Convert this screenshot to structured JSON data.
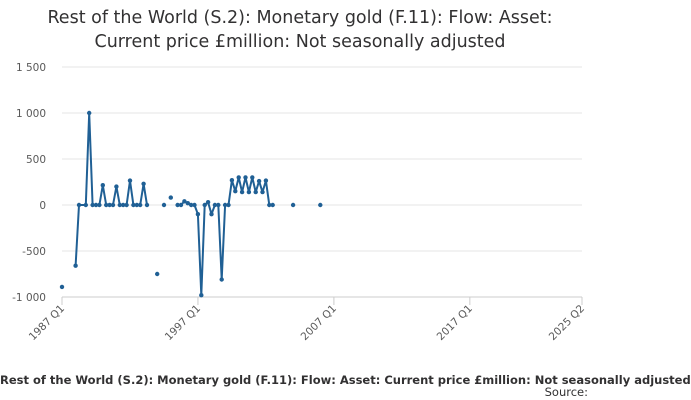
{
  "chart_data": {
    "type": "line",
    "title_lines": [
      "Rest of the World (S.2): Monetary gold (F.11): Flow: Asset:",
      "Current price £million: Not seasonally adjusted"
    ],
    "caption": "Rest of the World (S.2): Monetary gold (F.11): Flow: Asset: Current price £million: Not seasonally adjusted",
    "source_label": "Source:",
    "ylim": [
      -1000,
      1500
    ],
    "y_ticks": [
      {
        "value": 1500,
        "label": "1 500"
      },
      {
        "value": 1000,
        "label": "1 000"
      },
      {
        "value": 500,
        "label": "500"
      },
      {
        "value": 0,
        "label": "0"
      },
      {
        "value": -500,
        "label": "-500"
      },
      {
        "value": -1000,
        "label": "-1 000"
      }
    ],
    "x_range_quarters": [
      0,
      153
    ],
    "x_ticks": [
      {
        "q": 0,
        "label": "1987 Q1"
      },
      {
        "q": 40,
        "label": "1997 Q1"
      },
      {
        "q": 80,
        "label": "2007 Q1"
      },
      {
        "q": 120,
        "label": "2017 Q1"
      },
      {
        "q": 153,
        "label": "2025 Q2"
      }
    ],
    "series_color": "#206095",
    "series": [
      {
        "name": "Monetary gold flow",
        "quarter_index": [
          0,
          4,
          5,
          7,
          8,
          9,
          10,
          11,
          12,
          13,
          14,
          15,
          16,
          17,
          18,
          19,
          20,
          21,
          22,
          23,
          24,
          25,
          28,
          30,
          32,
          34,
          35,
          36,
          37,
          38,
          39,
          40,
          41,
          42,
          43,
          44,
          45,
          46,
          47,
          48,
          49,
          50,
          51,
          52,
          53,
          54,
          55,
          56,
          57,
          58,
          59,
          60,
          61,
          62,
          68,
          76
        ],
        "values": [
          -890,
          -660,
          0,
          0,
          1000,
          0,
          0,
          0,
          215,
          0,
          0,
          0,
          200,
          0,
          0,
          0,
          265,
          0,
          0,
          0,
          230,
          0,
          -750,
          0,
          80,
          0,
          0,
          40,
          20,
          0,
          0,
          -100,
          -980,
          0,
          30,
          -100,
          0,
          0,
          -810,
          0,
          0,
          270,
          150,
          300,
          140,
          300,
          140,
          300,
          140,
          260,
          140,
          265,
          0,
          0,
          0,
          0
        ],
        "line_segments": [
          [
            4,
            25
          ],
          [
            34,
            62
          ]
        ]
      }
    ]
  }
}
